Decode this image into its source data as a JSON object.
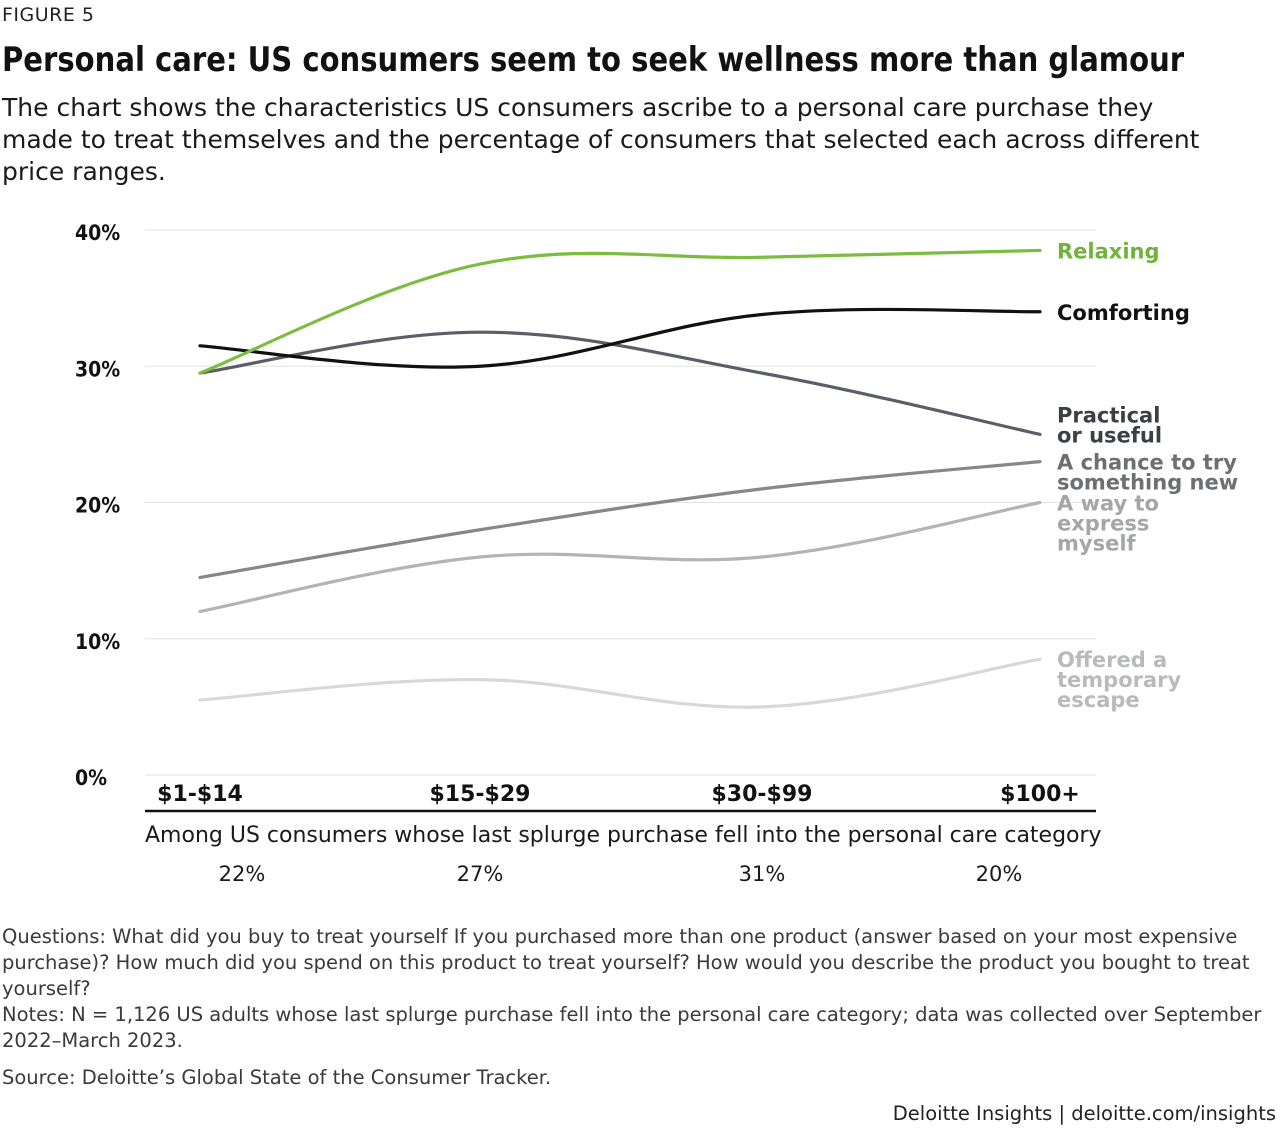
{
  "figure_label": "FIGURE 5",
  "title": "Personal care: US consumers seem to seek wellness more than glamour",
  "subtitle": "The chart shows the characteristics US consumers ascribe to a personal care purchase they made to treat themselves and the percentage of consumers that selected each across different price ranges.",
  "caption": "Among US consumers whose last splurge purchase fell into the personal care category",
  "shares": [
    "22%",
    "27%",
    "31%",
    "20%"
  ],
  "notes": {
    "questions": "Questions: What did you buy to treat yourself If you purchased more than one product (answer based on your most expensive purchase)? How much did you spend on this product to treat yourself? How would you describe the product you bought to treat yourself?",
    "notes": "Notes: N = 1,126 US adults whose last splurge purchase fell into the personal care category; data was collected over September 2022–March 2023.",
    "source": "Source: Deloitte’s Global State of the Consumer Tracker."
  },
  "brand": "Deloitte Insights | deloitte.com/insights",
  "chart_data": {
    "type": "line",
    "categories": [
      "$1-$14",
      "$15-$29",
      "$30-$99",
      "$100+"
    ],
    "ylim": [
      0,
      40
    ],
    "yticks": [
      0,
      10,
      20,
      30,
      40
    ],
    "ytick_labels": [
      "0%",
      "10%",
      "20%",
      "30%",
      "40%"
    ],
    "grid": true,
    "series": [
      {
        "name": "Relaxing",
        "label_lines": [
          "Relaxing"
        ],
        "color": "#7cbd3f",
        "label_color": "#6fb33a",
        "values": [
          29.5,
          37.5,
          38.0,
          38.5
        ]
      },
      {
        "name": "Comforting",
        "label_lines": [
          "Comforting"
        ],
        "color": "#111111",
        "label_color": "#111111",
        "values": [
          31.5,
          30.0,
          33.8,
          34.0
        ]
      },
      {
        "name": "Practical or useful",
        "label_lines": [
          "Practical",
          "or useful"
        ],
        "color": "#5b5e66",
        "label_color": "#3c3f45",
        "values": [
          29.5,
          32.5,
          29.5,
          25.0
        ]
      },
      {
        "name": "A chance to try something new",
        "label_lines": [
          "A chance to try",
          "something new"
        ],
        "color": "#85878b",
        "label_color": "#6d6f73",
        "values": [
          14.5,
          18.0,
          21.0,
          23.0
        ]
      },
      {
        "name": "A way to express myself",
        "label_lines": [
          "A way to",
          "express",
          "myself"
        ],
        "color": "#b3b4b6",
        "label_color": "#a5a6a8",
        "values": [
          12.0,
          16.0,
          16.0,
          20.0
        ]
      },
      {
        "name": "Offered a temporary escape",
        "label_lines": [
          "Offered a",
          "temporary",
          "escape"
        ],
        "color": "#d7d8d9",
        "label_color": "#b9babc",
        "values": [
          5.5,
          7.0,
          5.0,
          8.5
        ]
      }
    ]
  }
}
